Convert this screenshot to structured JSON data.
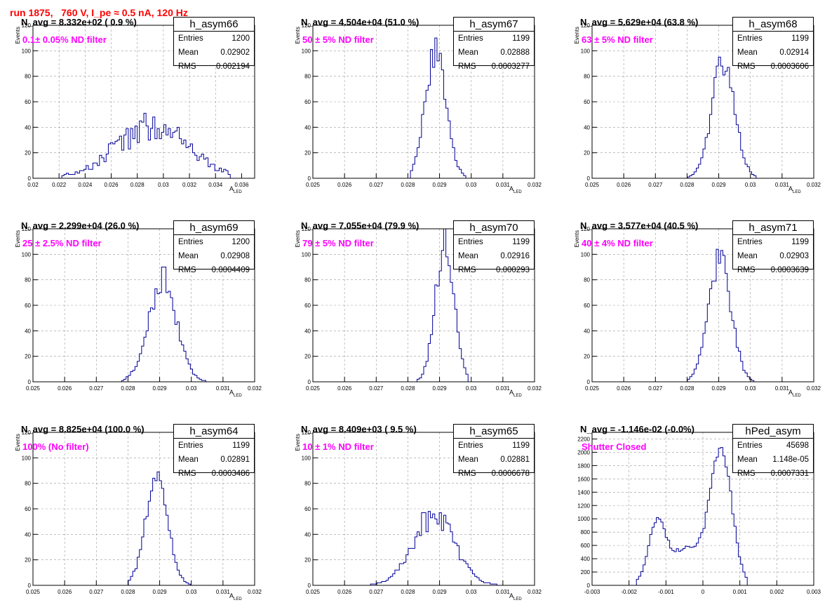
{
  "page_title": "run 1875,   760 V, I_pe ≈ 0.5 nA, 120 Hz",
  "stat_labels": {
    "entries": "Entries",
    "mean": "Mean",
    "rms": "RMS"
  },
  "chart_data": [
    {
      "type": "bar",
      "name": "h_asym66",
      "n_avg": "N_avg = 8.332e+02 ( 0.9 %)",
      "note": "0.1± 0.05% ND filter",
      "entries": "1200",
      "mean": "0.02902",
      "rms": "0.002194",
      "ylabel": "Events",
      "xlabel": "A_LED",
      "xlim": [
        0.02,
        0.037
      ],
      "ylim": [
        0,
        120
      ],
      "xticks": [
        0.02,
        0.022,
        0.024,
        0.026,
        0.028,
        0.03,
        0.032,
        0.034,
        0.036
      ],
      "xtick_labels": [
        "0.02",
        "0.022",
        "0.024",
        "0.026",
        "0.028",
        "0.03",
        "0.032",
        "0.034",
        "0.036"
      ],
      "yticks": [
        0,
        20,
        40,
        60,
        80,
        100,
        120
      ],
      "ytick_labels": [
        "0",
        "20",
        "40",
        "60",
        "80",
        "100",
        "120"
      ],
      "dist": {
        "peaks": [
          [
            0.0291,
            0.0028,
            40
          ]
        ],
        "lo": 0.0222,
        "hi": 0.0352,
        "noise": 0.3,
        "seed": 1
      }
    },
    {
      "type": "bar",
      "name": "h_asym67",
      "n_avg": "N_avg = 4.504e+04 (51.0 %)",
      "note": "50 ± 5% ND filter",
      "entries": "1199",
      "mean": "0.02888",
      "rms": "0.0003277",
      "ylabel": "Events",
      "xlabel": "A_LED",
      "xlim": [
        0.025,
        0.032
      ],
      "ylim": [
        0,
        120
      ],
      "xticks": [
        0.025,
        0.026,
        0.027,
        0.028,
        0.029,
        0.03,
        0.031,
        0.032
      ],
      "xtick_labels": [
        "0.025",
        "0.026",
        "0.027",
        "0.028",
        "0.029",
        "0.03",
        "0.031",
        "0.032"
      ],
      "yticks": [
        0,
        20,
        40,
        60,
        80,
        100,
        120
      ],
      "ytick_labels": [
        "0",
        "20",
        "40",
        "60",
        "80",
        "100",
        "120"
      ],
      "dist": {
        "peaks": [
          [
            0.02888,
            0.00033,
            100
          ]
        ],
        "lo": 0.0281,
        "hi": 0.0298,
        "noise": 0.12,
        "seed": 2
      }
    },
    {
      "type": "bar",
      "name": "h_asym68",
      "n_avg": "N_avg = 5.629e+04 (63.8 %)",
      "note": "63 ± 5% ND filter",
      "entries": "1199",
      "mean": "0.02914",
      "rms": "0.0003606",
      "ylabel": "Events",
      "xlabel": "A_LED",
      "xlim": [
        0.025,
        0.032
      ],
      "ylim": [
        0,
        120
      ],
      "xticks": [
        0.025,
        0.026,
        0.027,
        0.028,
        0.029,
        0.03,
        0.031,
        0.032
      ],
      "xtick_labels": [
        "0.025",
        "0.026",
        "0.027",
        "0.028",
        "0.029",
        "0.03",
        "0.031",
        "0.032"
      ],
      "yticks": [
        0,
        20,
        40,
        60,
        80,
        100,
        120
      ],
      "ytick_labels": [
        "0",
        "20",
        "40",
        "60",
        "80",
        "100",
        "120"
      ],
      "dist": {
        "peaks": [
          [
            0.02914,
            0.00036,
            92
          ]
        ],
        "lo": 0.0279,
        "hi": 0.0302,
        "noise": 0.14,
        "seed": 3
      }
    },
    {
      "type": "bar",
      "name": "h_asym69",
      "n_avg": "N_avg = 2.299e+04 (26.0 %)",
      "note": "25 ± 2.5% ND filter",
      "entries": "1200",
      "mean": "0.02908",
      "rms": "0.0004409",
      "ylabel": "Events",
      "xlabel": "A_LED",
      "xlim": [
        0.025,
        0.032
      ],
      "ylim": [
        0,
        120
      ],
      "xticks": [
        0.025,
        0.026,
        0.027,
        0.028,
        0.029,
        0.03,
        0.031,
        0.032
      ],
      "xtick_labels": [
        "0.025",
        "0.026",
        "0.027",
        "0.028",
        "0.029",
        "0.03",
        "0.031",
        "0.032"
      ],
      "yticks": [
        0,
        20,
        40,
        60,
        80,
        100,
        120
      ],
      "ytick_labels": [
        "0",
        "20",
        "40",
        "60",
        "80",
        "100",
        "120"
      ],
      "dist": {
        "peaks": [
          [
            0.02908,
            0.00044,
            80
          ]
        ],
        "lo": 0.0278,
        "hi": 0.0305,
        "noise": 0.16,
        "seed": 4
      }
    },
    {
      "type": "bar",
      "name": "h_asym70",
      "n_avg": "N_avg = 7.055e+04 (79.9 %)",
      "note": "79 ± 5% ND filter",
      "entries": "1199",
      "mean": "0.02916",
      "rms": "0.000293",
      "ylabel": "Events",
      "xlabel": "A_LED",
      "xlim": [
        0.025,
        0.032
      ],
      "ylim": [
        0,
        120
      ],
      "xticks": [
        0.025,
        0.026,
        0.027,
        0.028,
        0.029,
        0.03,
        0.031,
        0.032
      ],
      "xtick_labels": [
        "0.025",
        "0.026",
        "0.027",
        "0.028",
        "0.029",
        "0.03",
        "0.031",
        "0.032"
      ],
      "yticks": [
        0,
        20,
        40,
        60,
        80,
        100,
        120
      ],
      "ytick_labels": [
        "0",
        "20",
        "40",
        "60",
        "80",
        "100",
        "120"
      ],
      "dist": {
        "peaks": [
          [
            0.02916,
            0.00029,
            110
          ]
        ],
        "lo": 0.0283,
        "hi": 0.0299,
        "noise": 0.12,
        "seed": 5
      }
    },
    {
      "type": "bar",
      "name": "h_asym71",
      "n_avg": "N_avg = 3.577e+04 (40.5 %)",
      "note": "40 ± 4% ND filter",
      "entries": "1199",
      "mean": "0.02903",
      "rms": "0.0003639",
      "ylabel": "Events",
      "xlabel": "A_LED",
      "xlim": [
        0.025,
        0.032
      ],
      "ylim": [
        0,
        120
      ],
      "xticks": [
        0.025,
        0.026,
        0.027,
        0.028,
        0.029,
        0.03,
        0.031,
        0.032
      ],
      "xtick_labels": [
        "0.025",
        "0.026",
        "0.027",
        "0.028",
        "0.029",
        "0.03",
        "0.031",
        "0.032"
      ],
      "yticks": [
        0,
        20,
        40,
        60,
        80,
        100,
        120
      ],
      "ytick_labels": [
        "0",
        "20",
        "40",
        "60",
        "80",
        "100",
        "120"
      ],
      "dist": {
        "peaks": [
          [
            0.02903,
            0.00036,
            95
          ]
        ],
        "lo": 0.028,
        "hi": 0.0301,
        "noise": 0.13,
        "seed": 6
      }
    },
    {
      "type": "bar",
      "name": "h_asym64",
      "n_avg": "N_avg = 8.825e+04 (100.0 %)",
      "note": "100% (No filter)",
      "entries": "1199",
      "mean": "0.02891",
      "rms": "0.0003486",
      "ylabel": "Events",
      "xlabel": "A_LED",
      "xlim": [
        0.025,
        0.032
      ],
      "ylim": [
        0,
        120
      ],
      "xticks": [
        0.025,
        0.026,
        0.027,
        0.028,
        0.029,
        0.03,
        0.031,
        0.032
      ],
      "xtick_labels": [
        "0.025",
        "0.026",
        "0.027",
        "0.028",
        "0.029",
        "0.03",
        "0.031",
        "0.032"
      ],
      "yticks": [
        0,
        20,
        40,
        60,
        80,
        100,
        120
      ],
      "ytick_labels": [
        "0",
        "20",
        "40",
        "60",
        "80",
        "100",
        "120"
      ],
      "dist": {
        "peaks": [
          [
            0.02891,
            0.00035,
            85
          ]
        ],
        "lo": 0.028,
        "hi": 0.03,
        "noise": 0.1,
        "seed": 7
      }
    },
    {
      "type": "bar",
      "name": "h_asym65",
      "n_avg": "N_avg = 8.409e+03 ( 9.5 %)",
      "note": "10 ± 1% ND filter",
      "entries": "1199",
      "mean": "0.02881",
      "rms": "0.0006678",
      "ylabel": "Events",
      "xlabel": "A_LED",
      "xlim": [
        0.025,
        0.032
      ],
      "ylim": [
        0,
        120
      ],
      "xticks": [
        0.025,
        0.026,
        0.027,
        0.028,
        0.029,
        0.03,
        0.031,
        0.032
      ],
      "xtick_labels": [
        "0.025",
        "0.026",
        "0.027",
        "0.028",
        "0.029",
        "0.03",
        "0.031",
        "0.032"
      ],
      "yticks": [
        0,
        20,
        40,
        60,
        80,
        100,
        120
      ],
      "ytick_labels": [
        "0",
        "20",
        "40",
        "60",
        "80",
        "100",
        "120"
      ],
      "dist": {
        "peaks": [
          [
            0.02881,
            0.00066,
            55
          ]
        ],
        "lo": 0.0266,
        "hi": 0.031,
        "noise": 0.2,
        "seed": 8
      }
    },
    {
      "type": "bar",
      "name": "hPed_asym",
      "n_avg": "N_avg = -1.146e-02 (-0.0%)",
      "note": "Shutter Closed",
      "entries": "45698",
      "mean": "1.148e-05",
      "rms": "0.0007331",
      "ylabel": "",
      "xlabel": "",
      "xlim": [
        -0.003,
        0.003
      ],
      "ylim": [
        0,
        2300
      ],
      "xticks": [
        -0.003,
        -0.002,
        -0.001,
        0,
        0.001,
        0.002,
        0.003
      ],
      "xtick_labels": [
        "-0.003",
        "-0.002",
        "-0.001",
        "0",
        "0.001",
        "0.002",
        "0.003"
      ],
      "yticks": [
        0,
        200,
        400,
        600,
        800,
        1000,
        1200,
        1400,
        1600,
        1800,
        2000,
        2200
      ],
      "ytick_labels": [
        "0",
        "200",
        "400",
        "600",
        "800",
        "1000",
        "1200",
        "1400",
        "1600",
        "1800",
        "2000",
        "2200"
      ],
      "dist": {
        "peaks": [
          [
            -0.00125,
            0.00022,
            780
          ],
          [
            -0.0004,
            0.0006,
            560
          ],
          [
            0.0005,
            0.00028,
            1900
          ]
        ],
        "lo": -0.0018,
        "hi": 0.0012,
        "noise": 0.05,
        "seed": 9
      }
    }
  ]
}
